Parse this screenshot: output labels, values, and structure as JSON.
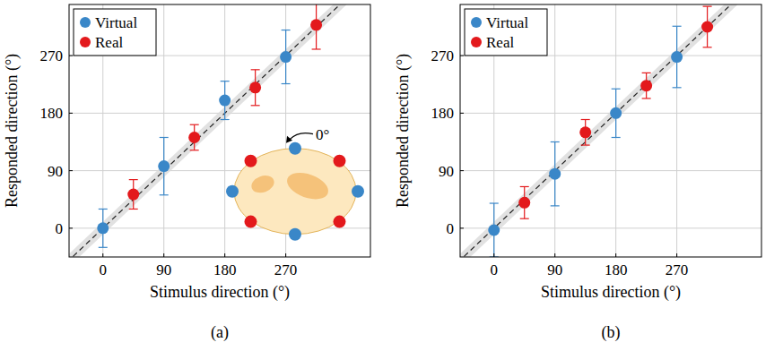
{
  "chart_data": [
    {
      "type": "scatter",
      "label": "(a)",
      "x_label": "Stimulus direction (°)",
      "y_label": "Responded direction (°)",
      "xlim": [
        -50,
        395
      ],
      "ylim": [
        -45,
        350
      ],
      "xticks": [
        0,
        90,
        180,
        270
      ],
      "yticks": [
        0,
        90,
        180,
        270
      ],
      "grid": true,
      "legend": "upper left",
      "reference_band": 10,
      "annotations": [
        "0°"
      ],
      "series": [
        {
          "name": "Virtual",
          "color": "#3a87c8",
          "marker": "circle",
          "x": [
            0,
            90,
            180,
            270
          ],
          "values": [
            0,
            97,
            200,
            268
          ],
          "errors": [
            30,
            45,
            30,
            42
          ]
        },
        {
          "name": "Real",
          "color": "#e3191c",
          "marker": "circle",
          "x": [
            45,
            135,
            225,
            315
          ],
          "values": [
            53,
            142,
            220,
            318
          ],
          "errors": [
            23,
            20,
            28,
            38
          ]
        }
      ]
    },
    {
      "type": "scatter",
      "label": "(b)",
      "x_label": "Stimulus direction (°)",
      "y_label": "Responded direction (°)",
      "xlim": [
        -50,
        395
      ],
      "ylim": [
        -45,
        350
      ],
      "xticks": [
        0,
        90,
        180,
        270
      ],
      "yticks": [
        0,
        90,
        180,
        270
      ],
      "grid": true,
      "legend": "upper left",
      "reference_band": 10,
      "series": [
        {
          "name": "Virtual",
          "color": "#3a87c8",
          "marker": "circle",
          "x": [
            0,
            90,
            180,
            270
          ],
          "values": [
            -3,
            85,
            180,
            268
          ],
          "errors": [
            42,
            50,
            38,
            48
          ]
        },
        {
          "name": "Real",
          "color": "#e3191c",
          "marker": "circle",
          "x": [
            45,
            135,
            225,
            315
          ],
          "values": [
            40,
            150,
            223,
            315
          ],
          "errors": [
            25,
            20,
            20,
            32
          ]
        }
      ]
    }
  ]
}
